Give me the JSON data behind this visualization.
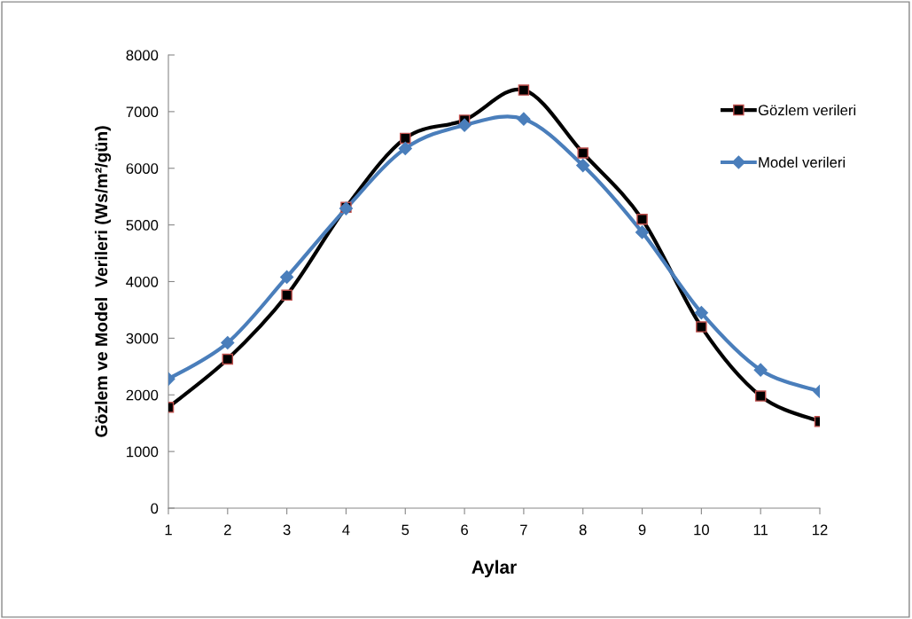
{
  "chart_data": {
    "type": "line",
    "xlabel": "Aylar",
    "ylabel": "Gözlem ve Model  Verileri (Ws/m²/gün)",
    "categories": [
      "1",
      "2",
      "3",
      "4",
      "5",
      "6",
      "7",
      "8",
      "9",
      "10",
      "11",
      "12"
    ],
    "series": [
      {
        "name": "Gözlem verileri",
        "color": "#000000",
        "marker": "square",
        "values": [
          1780,
          2630,
          3760,
          5310,
          6530,
          6850,
          7380,
          6270,
          5100,
          3200,
          1980,
          1530
        ]
      },
      {
        "name": "Model verileri",
        "color": "#4a7ebb",
        "marker": "diamond",
        "values": [
          2280,
          2920,
          4080,
          5290,
          6350,
          6760,
          6870,
          6050,
          4870,
          3450,
          2440,
          2060
        ]
      }
    ],
    "ylim": [
      0,
      8000
    ],
    "yticks": [
      0,
      1000,
      2000,
      3000,
      4000,
      5000,
      6000,
      7000,
      8000
    ],
    "grid": false,
    "legend": "right",
    "line_style": "solid"
  }
}
